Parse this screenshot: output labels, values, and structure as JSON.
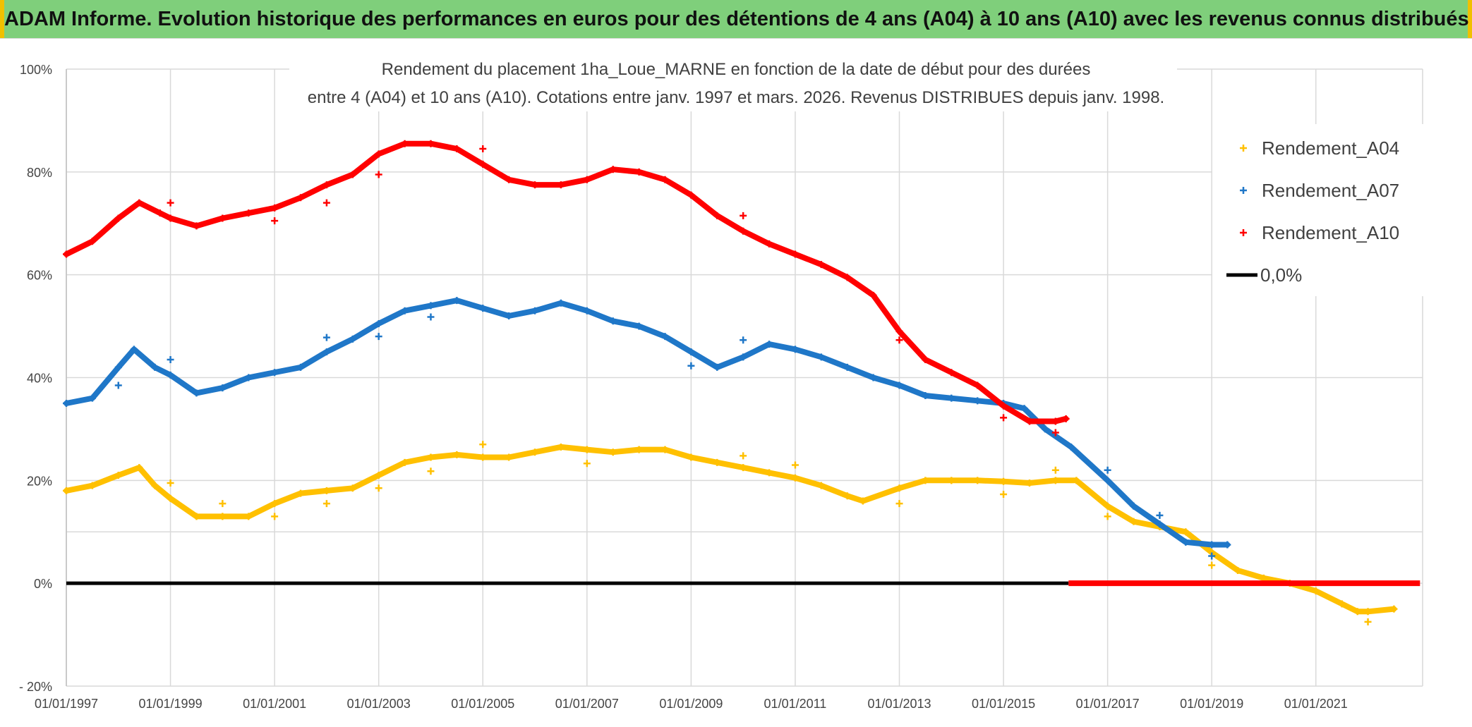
{
  "banner": {
    "title": "ADAM Informe. Evolution historique des performances en euros pour des détentions de 4 ans (A04) à 10 ans (A10) avec les revenus connus distribués"
  },
  "chart_data": {
    "type": "scatter",
    "title_line1": "Rendement du placement 1ha_Loue_MARNE en fonction de la date de début pour des durées",
    "title_line2": "entre 4 (A04) et 10 ans (A10). Cotations entre janv. 1997 et mars. 2026. Revenus DISTRIBUES depuis janv. 1998.",
    "xlabel": "",
    "ylabel": "",
    "xlim": [
      1997.0,
      2023.05
    ],
    "ylim": [
      -20,
      100
    ],
    "x_ticks": [
      {
        "value": 1997,
        "label": "01/01/1997"
      },
      {
        "value": 1999,
        "label": "01/01/1999"
      },
      {
        "value": 2001,
        "label": "01/01/2001"
      },
      {
        "value": 2003,
        "label": "01/01/2003"
      },
      {
        "value": 2005,
        "label": "01/01/2005"
      },
      {
        "value": 2007,
        "label": "01/01/2007"
      },
      {
        "value": 2009,
        "label": "01/01/2009"
      },
      {
        "value": 2011,
        "label": "01/01/2011"
      },
      {
        "value": 2013,
        "label": "01/01/2013"
      },
      {
        "value": 2015,
        "label": "01/01/2015"
      },
      {
        "value": 2017,
        "label": "01/01/2017"
      },
      {
        "value": 2019,
        "label": "01/01/2019"
      },
      {
        "value": 2021,
        "label": "01/01/2021"
      }
    ],
    "y_ticks": [
      {
        "value": 100,
        "label": "100%"
      },
      {
        "value": 80,
        "label": "80%"
      },
      {
        "value": 60,
        "label": "60%"
      },
      {
        "value": 40,
        "label": "40%"
      },
      {
        "value": 20,
        "label": "20%"
      },
      {
        "value": 10,
        "label": ""
      },
      {
        "value": 0,
        "label": "0%"
      },
      {
        "value": -20,
        "label": "- 20%"
      }
    ],
    "legend": {
      "position": "top-right"
    },
    "series": [
      {
        "name": "Rendement_A04",
        "color": "#ffc000",
        "points": [
          [
            1997.0,
            18.0
          ],
          [
            1997.5,
            19.0
          ],
          [
            1998.0,
            21.0
          ],
          [
            1998.4,
            22.5
          ],
          [
            1998.7,
            19.0
          ],
          [
            1999.0,
            16.5
          ],
          [
            1999.5,
            13.0
          ],
          [
            2000.0,
            13.0
          ],
          [
            2000.5,
            13.0
          ],
          [
            2001.0,
            15.5
          ],
          [
            2001.5,
            17.5
          ],
          [
            2002.0,
            18.0
          ],
          [
            2002.5,
            18.5
          ],
          [
            2003.0,
            21.0
          ],
          [
            2003.5,
            23.5
          ],
          [
            2004.0,
            24.5
          ],
          [
            2004.5,
            25.0
          ],
          [
            2005.0,
            24.5
          ],
          [
            2005.5,
            24.5
          ],
          [
            2006.0,
            25.5
          ],
          [
            2006.5,
            26.5
          ],
          [
            2007.0,
            26.0
          ],
          [
            2007.5,
            25.5
          ],
          [
            2008.0,
            26.0
          ],
          [
            2008.5,
            26.0
          ],
          [
            2009.0,
            24.5
          ],
          [
            2009.5,
            23.5
          ],
          [
            2010.0,
            22.5
          ],
          [
            2010.5,
            21.5
          ],
          [
            2011.0,
            20.5
          ],
          [
            2011.5,
            19.0
          ],
          [
            2012.0,
            17.0
          ],
          [
            2012.3,
            16.0
          ],
          [
            2013.0,
            18.5
          ],
          [
            2013.5,
            20.0
          ],
          [
            2014.0,
            20.0
          ],
          [
            2014.5,
            20.0
          ],
          [
            2015.0,
            19.8
          ],
          [
            2015.5,
            19.5
          ],
          [
            2016.0,
            20.0
          ],
          [
            2016.4,
            20.0
          ],
          [
            2017.0,
            15.0
          ],
          [
            2017.5,
            12.0
          ],
          [
            2018.0,
            11.0
          ],
          [
            2018.5,
            10.0
          ],
          [
            2019.0,
            6.0
          ],
          [
            2019.5,
            2.5
          ],
          [
            2020.0,
            1.0
          ],
          [
            2020.5,
            0.0
          ],
          [
            2021.0,
            -1.5
          ],
          [
            2021.5,
            -4.0
          ],
          [
            2021.8,
            -5.5
          ],
          [
            2022.0,
            -5.5
          ],
          [
            2022.5,
            -5.0
          ]
        ],
        "outliers": [
          [
            1999.0,
            19.5
          ],
          [
            2000.0,
            15.5
          ],
          [
            2001.0,
            13.0
          ],
          [
            2002.0,
            15.5
          ],
          [
            2003.0,
            18.5
          ],
          [
            2004.0,
            21.8
          ],
          [
            2005.0,
            27.0
          ],
          [
            2007.0,
            23.3
          ],
          [
            2010.0,
            24.8
          ],
          [
            2011.0,
            23.0
          ],
          [
            2013.0,
            15.5
          ],
          [
            2015.0,
            17.3
          ],
          [
            2016.0,
            22.0
          ],
          [
            2017.0,
            13.0
          ],
          [
            2019.0,
            3.5
          ],
          [
            2022.0,
            -7.5
          ]
        ]
      },
      {
        "name": "Rendement_A07",
        "color": "#1f77c8",
        "points": [
          [
            1997.0,
            35.0
          ],
          [
            1997.5,
            36.0
          ],
          [
            1998.0,
            42.0
          ],
          [
            1998.3,
            45.5
          ],
          [
            1998.7,
            42.0
          ],
          [
            1999.0,
            40.5
          ],
          [
            1999.5,
            37.0
          ],
          [
            2000.0,
            38.0
          ],
          [
            2000.5,
            40.0
          ],
          [
            2001.0,
            41.0
          ],
          [
            2001.5,
            42.0
          ],
          [
            2002.0,
            45.0
          ],
          [
            2002.5,
            47.5
          ],
          [
            2003.0,
            50.5
          ],
          [
            2003.5,
            53.0
          ],
          [
            2004.0,
            54.0
          ],
          [
            2004.5,
            55.0
          ],
          [
            2005.0,
            53.5
          ],
          [
            2005.5,
            52.0
          ],
          [
            2006.0,
            53.0
          ],
          [
            2006.5,
            54.5
          ],
          [
            2007.0,
            53.0
          ],
          [
            2007.5,
            51.0
          ],
          [
            2008.0,
            50.0
          ],
          [
            2008.5,
            48.0
          ],
          [
            2009.0,
            45.0
          ],
          [
            2009.5,
            42.0
          ],
          [
            2010.0,
            44.0
          ],
          [
            2010.5,
            46.5
          ],
          [
            2011.0,
            45.5
          ],
          [
            2011.5,
            44.0
          ],
          [
            2012.0,
            42.0
          ],
          [
            2012.5,
            40.0
          ],
          [
            2013.0,
            38.5
          ],
          [
            2013.5,
            36.5
          ],
          [
            2014.0,
            36.0
          ],
          [
            2014.5,
            35.5
          ],
          [
            2015.0,
            35.0
          ],
          [
            2015.4,
            34.0
          ],
          [
            2015.8,
            30.0
          ],
          [
            2016.3,
            26.5
          ],
          [
            2017.0,
            20.0
          ],
          [
            2017.5,
            15.0
          ],
          [
            2018.0,
            11.5
          ],
          [
            2018.5,
            8.0
          ],
          [
            2019.0,
            7.5
          ],
          [
            2019.3,
            7.5
          ]
        ],
        "outliers": [
          [
            1998.0,
            38.5
          ],
          [
            1999.0,
            43.5
          ],
          [
            2002.0,
            47.8
          ],
          [
            2003.0,
            48.0
          ],
          [
            2004.0,
            51.8
          ],
          [
            2009.0,
            42.3
          ],
          [
            2010.0,
            47.3
          ],
          [
            2017.0,
            22.0
          ],
          [
            2018.0,
            13.2
          ],
          [
            2019.0,
            5.3
          ]
        ]
      },
      {
        "name": "Rendement_A10",
        "color": "#ff0000",
        "points": [
          [
            1997.0,
            64.0
          ],
          [
            1997.5,
            66.5
          ],
          [
            1998.0,
            71.0
          ],
          [
            1998.4,
            74.0
          ],
          [
            1998.8,
            72.0
          ],
          [
            1999.0,
            71.0
          ],
          [
            1999.5,
            69.5
          ],
          [
            2000.0,
            71.0
          ],
          [
            2000.5,
            72.0
          ],
          [
            2001.0,
            73.0
          ],
          [
            2001.5,
            75.0
          ],
          [
            2002.0,
            77.5
          ],
          [
            2002.5,
            79.5
          ],
          [
            2003.0,
            83.5
          ],
          [
            2003.5,
            85.5
          ],
          [
            2004.0,
            85.5
          ],
          [
            2004.5,
            84.5
          ],
          [
            2005.0,
            81.5
          ],
          [
            2005.5,
            78.5
          ],
          [
            2006.0,
            77.5
          ],
          [
            2006.5,
            77.5
          ],
          [
            2007.0,
            78.5
          ],
          [
            2007.5,
            80.5
          ],
          [
            2008.0,
            80.0
          ],
          [
            2008.5,
            78.5
          ],
          [
            2009.0,
            75.5
          ],
          [
            2009.5,
            71.5
          ],
          [
            2010.0,
            68.5
          ],
          [
            2010.5,
            66.0
          ],
          [
            2011.0,
            64.0
          ],
          [
            2011.5,
            62.0
          ],
          [
            2012.0,
            59.5
          ],
          [
            2012.5,
            56.0
          ],
          [
            2013.0,
            49.0
          ],
          [
            2013.5,
            43.5
          ],
          [
            2014.0,
            41.0
          ],
          [
            2014.5,
            38.5
          ],
          [
            2015.0,
            34.5
          ],
          [
            2015.5,
            31.5
          ],
          [
            2016.0,
            31.5
          ],
          [
            2016.2,
            32.0
          ]
        ],
        "outliers": [
          [
            1999.0,
            74.0
          ],
          [
            2001.0,
            70.5
          ],
          [
            2002.0,
            74.0
          ],
          [
            2003.0,
            79.5
          ],
          [
            2005.0,
            84.5
          ],
          [
            2010.0,
            71.5
          ],
          [
            2013.0,
            47.3
          ],
          [
            2015.0,
            32.2
          ],
          [
            2016.0,
            29.3
          ]
        ]
      }
    ],
    "zero_line": {
      "name": "0,0%",
      "color": "#000000",
      "x_start": 1997.0,
      "x_end": 2016.25,
      "value": 0
    },
    "red_zero_segment": {
      "x_start": 2016.25,
      "x_end": 2023.0,
      "value": 0
    }
  }
}
